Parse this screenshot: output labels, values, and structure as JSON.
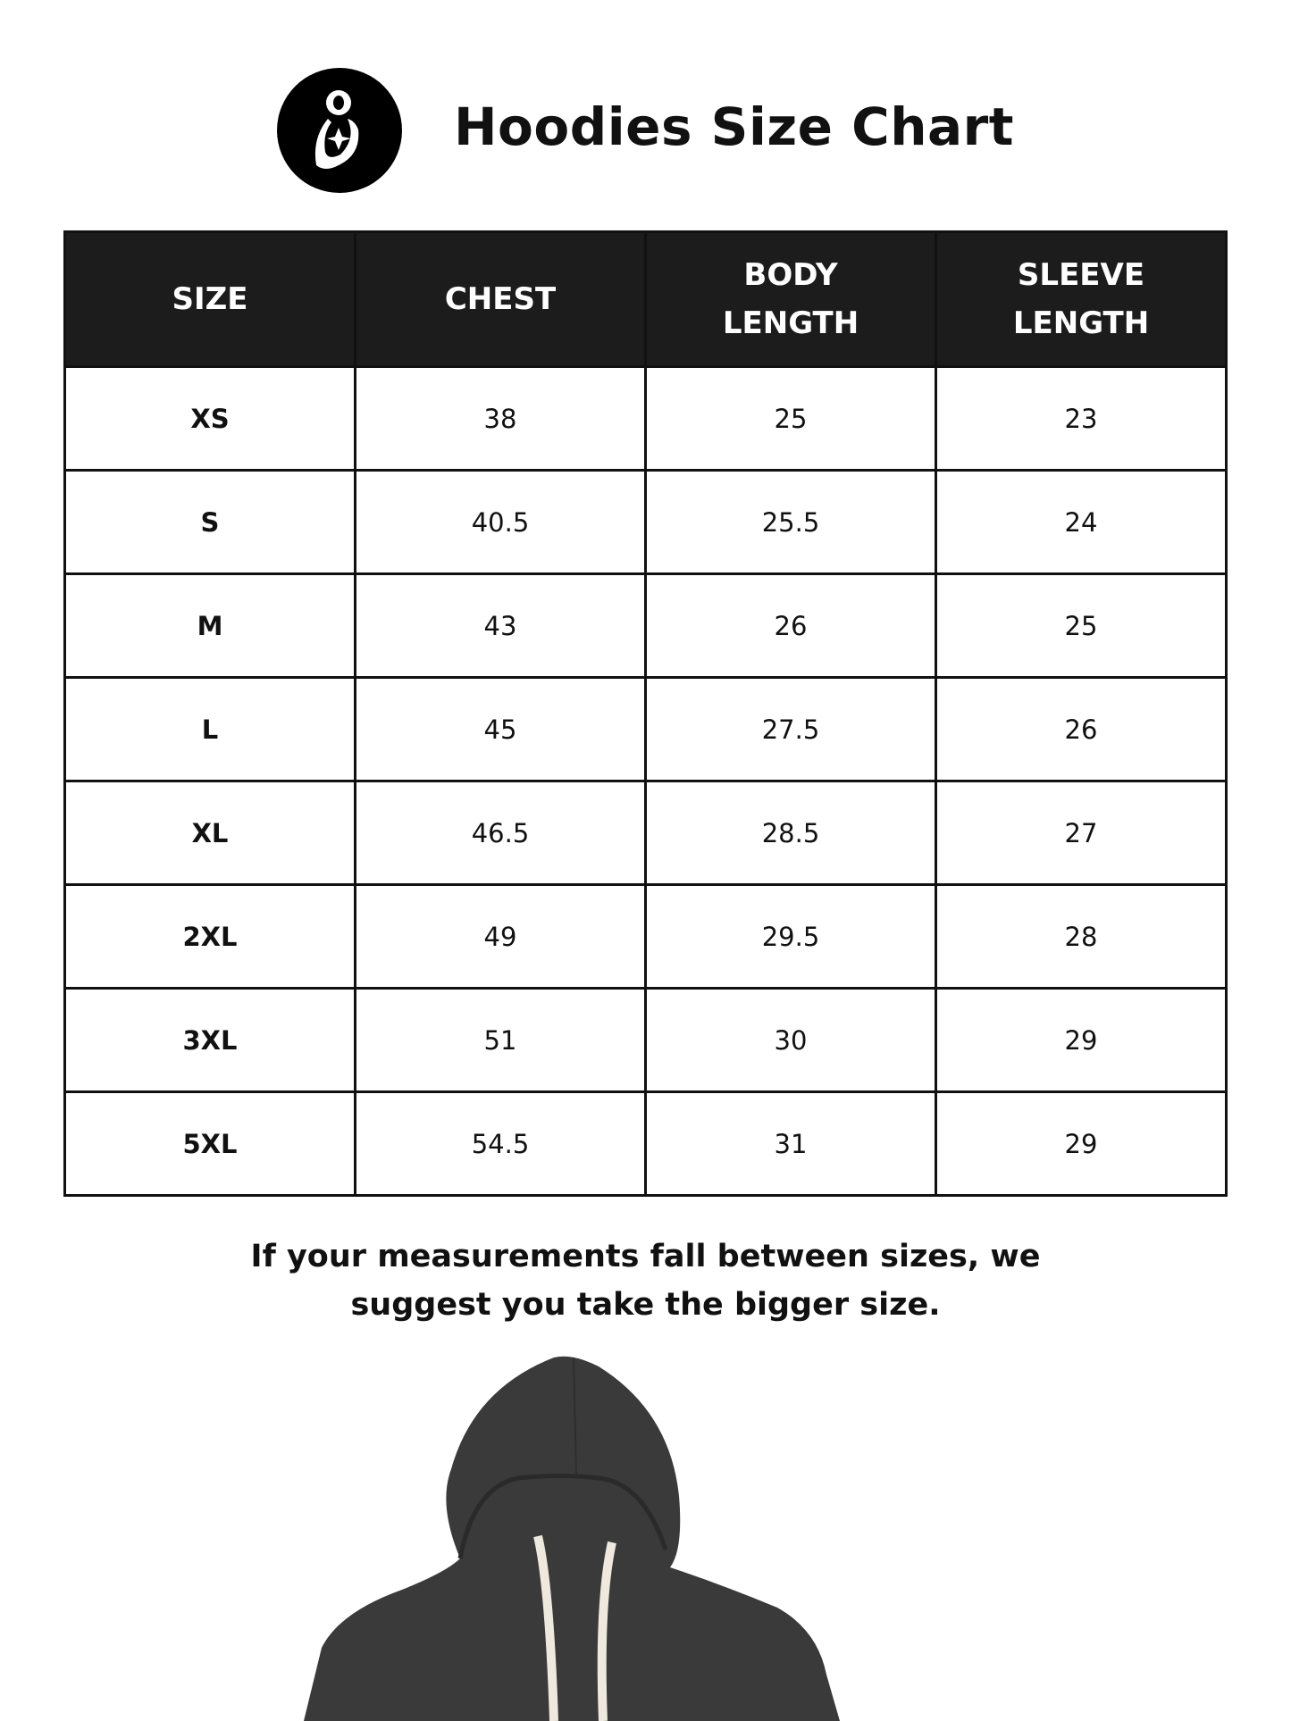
{
  "header": {
    "title": "Hoodies Size Chart",
    "logo_icon": "mother-child-logo-icon"
  },
  "table": {
    "columns": [
      [
        "SIZE"
      ],
      [
        "CHEST"
      ],
      [
        "BODY",
        "LENGTH"
      ],
      [
        "SLEEVE",
        "LENGTH"
      ]
    ],
    "rows": [
      [
        "XS",
        "38",
        "25",
        "23"
      ],
      [
        "S",
        "40.5",
        "25.5",
        "24"
      ],
      [
        "M",
        "43",
        "26",
        "25"
      ],
      [
        "L",
        "45",
        "27.5",
        "26"
      ],
      [
        "XL",
        "46.5",
        "28.5",
        "27"
      ],
      [
        "2XL",
        "49",
        "29.5",
        "28"
      ],
      [
        "3XL",
        "51",
        "30",
        "29"
      ],
      [
        "5XL",
        "54.5",
        "31",
        "29"
      ]
    ]
  },
  "note": {
    "line1": "If your measurements fall between sizes, we",
    "line2": "suggest you take the bigger size."
  },
  "colors": {
    "header_bg": "#1c1c1c",
    "hoodie": "#3a3a3a",
    "drawstring": "#eee9dc"
  }
}
